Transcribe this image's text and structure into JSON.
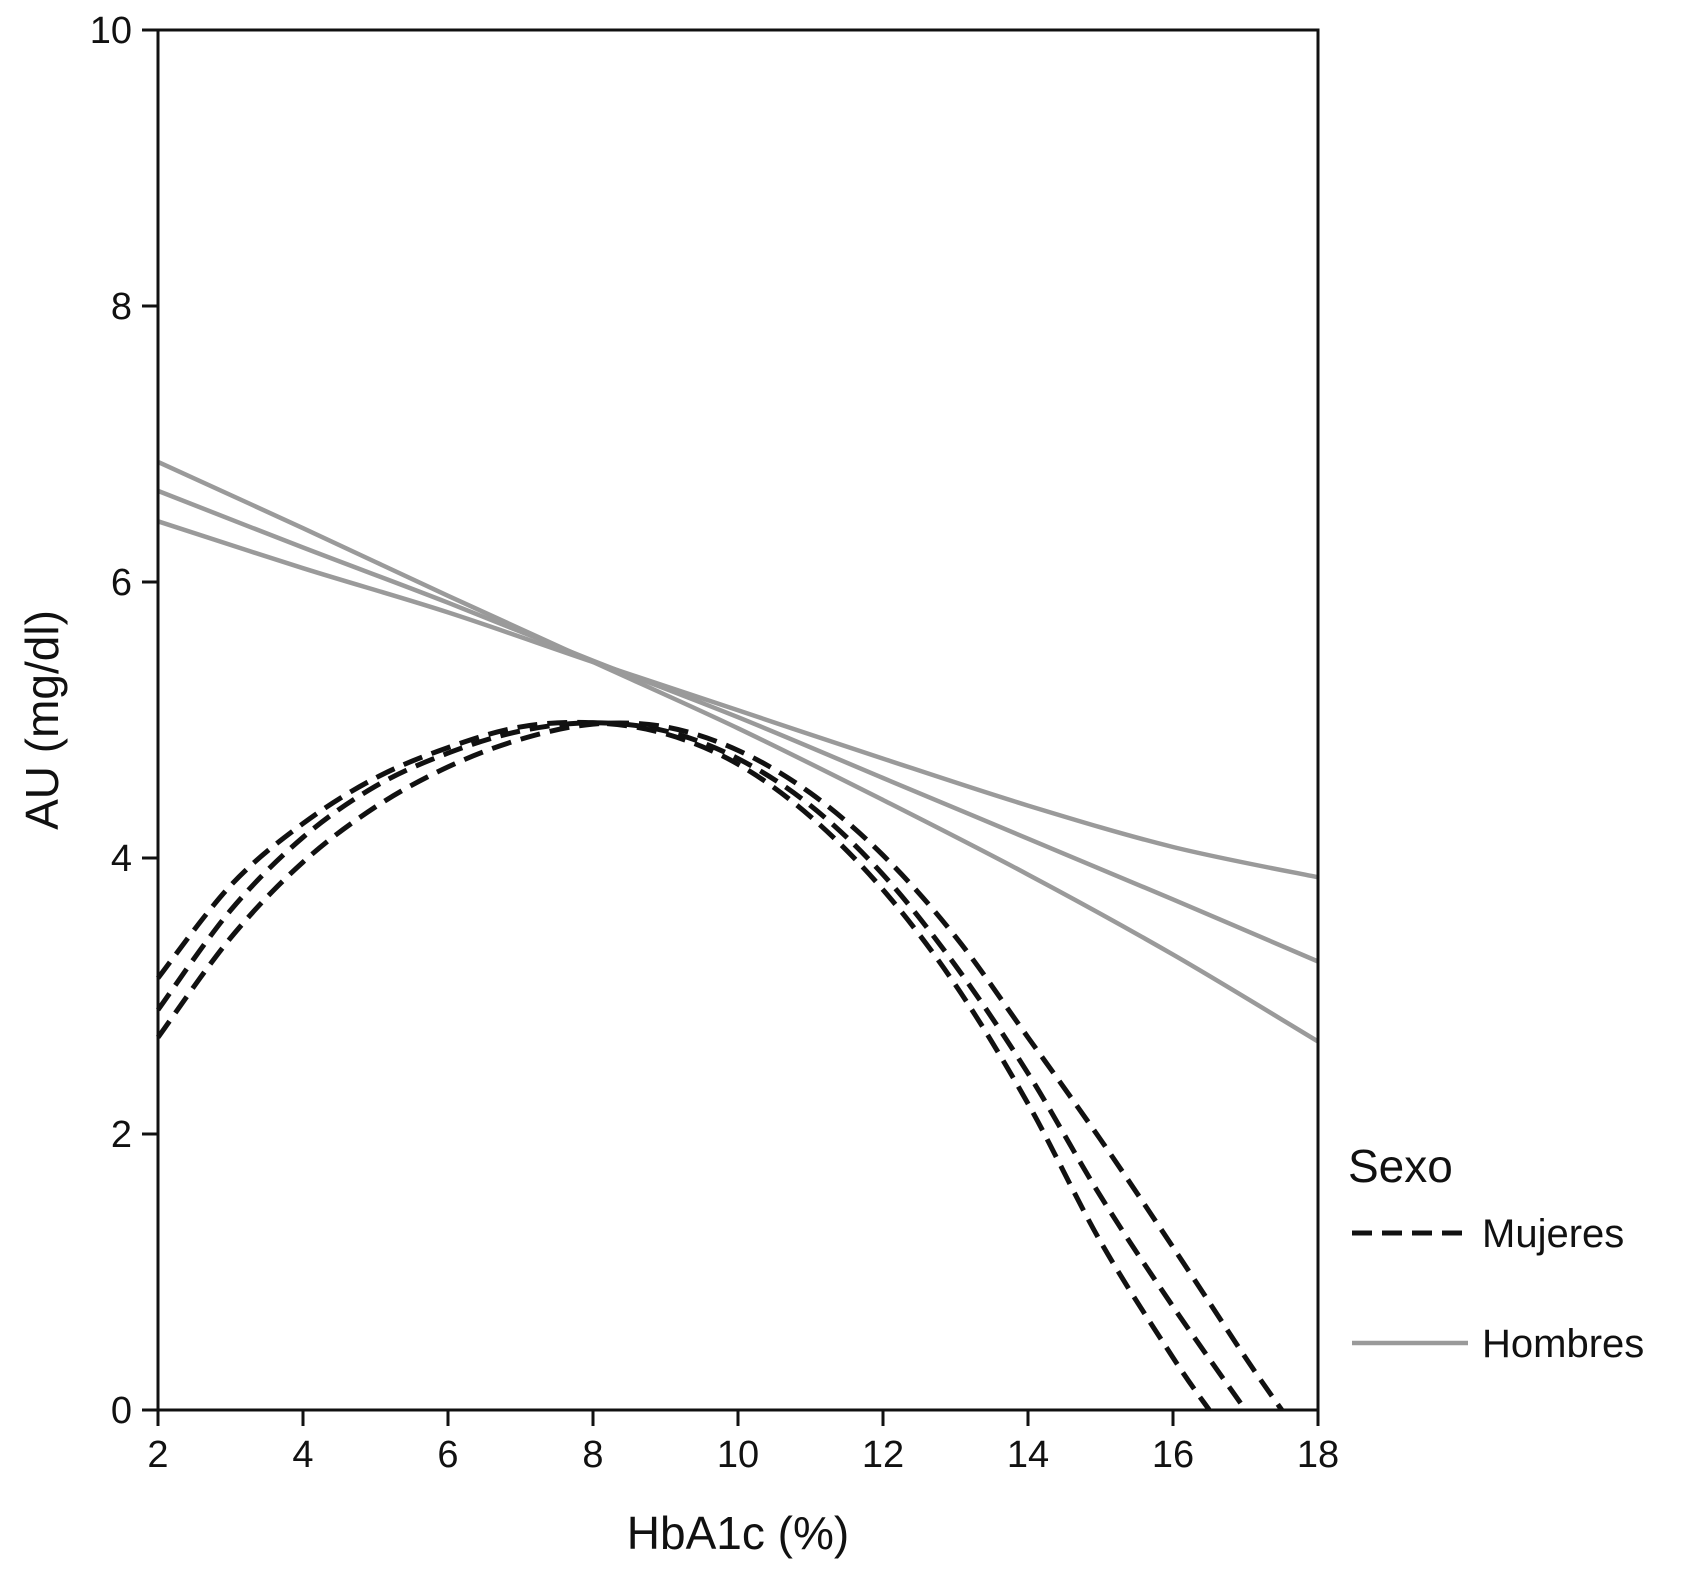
{
  "chart_data": {
    "type": "line",
    "title": "",
    "xlabel": "HbA1c (%)",
    "ylabel": "AU (mg/dl)",
    "xlim": [
      2,
      18
    ],
    "ylim": [
      0,
      10
    ],
    "xticks": [
      2,
      4,
      6,
      8,
      10,
      12,
      14,
      16,
      18
    ],
    "yticks": [
      0,
      2,
      4,
      6,
      8,
      10
    ],
    "grid": false,
    "legend": {
      "title": "Sexo",
      "placement": "right",
      "entries": [
        {
          "label": "Mujeres",
          "style": "dashed",
          "color": "#111111"
        },
        {
          "label": "Hombres",
          "style": "solid",
          "color": "#9a9a9a"
        }
      ]
    },
    "series": [
      {
        "group": "Mujeres",
        "style": "dashed",
        "color": "#111111",
        "x": [
          2,
          3,
          4,
          5,
          6,
          7,
          8,
          9,
          10,
          11,
          12,
          13,
          14,
          15,
          16,
          16.5
        ],
        "y": [
          3.13,
          3.8,
          4.25,
          4.58,
          4.8,
          4.95,
          4.98,
          4.9,
          4.68,
          4.3,
          3.77,
          3.08,
          2.22,
          1.22,
          0.38,
          0.0
        ]
      },
      {
        "group": "Mujeres",
        "style": "dashed",
        "color": "#111111",
        "x": [
          2,
          3,
          4,
          5,
          6,
          7,
          8,
          9,
          10,
          11,
          12,
          13,
          14,
          15,
          16,
          17
        ],
        "y": [
          2.9,
          3.62,
          4.15,
          4.52,
          4.76,
          4.92,
          4.98,
          4.92,
          4.72,
          4.38,
          3.88,
          3.22,
          2.44,
          1.55,
          0.75,
          0.0
        ]
      },
      {
        "group": "Mujeres",
        "style": "dashed",
        "color": "#111111",
        "x": [
          2,
          3,
          4,
          5,
          6,
          7,
          8,
          9,
          10,
          11,
          12,
          13,
          14,
          15,
          16,
          17,
          17.5
        ],
        "y": [
          2.7,
          3.42,
          3.97,
          4.37,
          4.66,
          4.86,
          4.97,
          4.95,
          4.78,
          4.47,
          4.02,
          3.43,
          2.7,
          1.96,
          1.18,
          0.38,
          0.0
        ]
      },
      {
        "group": "Hombres",
        "style": "solid",
        "color": "#9a9a9a",
        "x": [
          2,
          4,
          6,
          8,
          10,
          12,
          14,
          16,
          18
        ],
        "y": [
          6.87,
          6.39,
          5.9,
          5.42,
          4.94,
          4.42,
          3.88,
          3.3,
          2.67
        ]
      },
      {
        "group": "Hombres",
        "style": "solid",
        "color": "#9a9a9a",
        "x": [
          2,
          4,
          6,
          8,
          10,
          12,
          14,
          16,
          18
        ],
        "y": [
          6.66,
          6.25,
          5.85,
          5.43,
          5.02,
          4.58,
          4.14,
          3.7,
          3.25
        ]
      },
      {
        "group": "Hombres",
        "style": "solid",
        "color": "#9a9a9a",
        "x": [
          2,
          4,
          6,
          8,
          10,
          12,
          14,
          16,
          18
        ],
        "y": [
          6.44,
          6.1,
          5.78,
          5.42,
          5.07,
          4.72,
          4.38,
          4.08,
          3.86
        ]
      }
    ]
  }
}
